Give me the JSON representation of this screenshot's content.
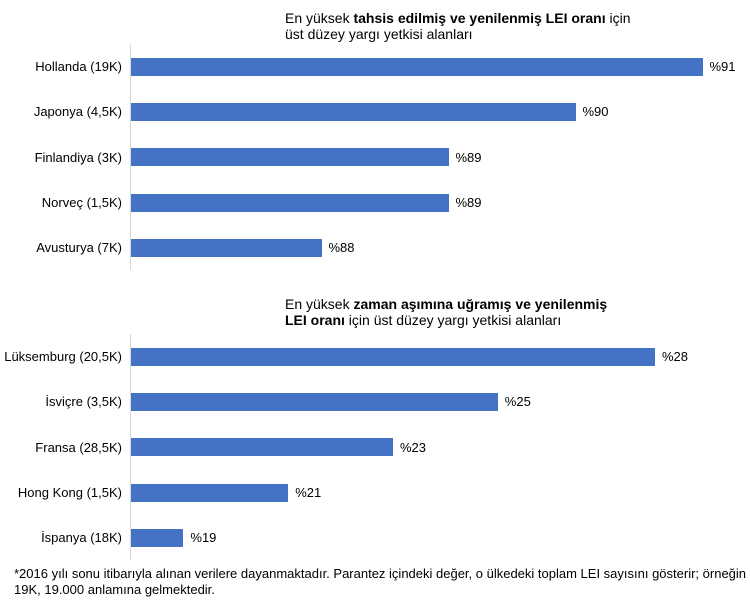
{
  "page": {
    "background": "#ffffff"
  },
  "colors": {
    "bar": "#4472C4",
    "axis_line": "#D9D9D9",
    "text": "#000000"
  },
  "footnote": {
    "lines": [
      "*2016 yılı sonu itibarıyla alınan verilere dayanmaktadır. Parantez içindeki değer, o ülkedeki toplam LEI sayısını gösterir; örneğin",
      "19K, 19.000 anlamına gelmektedir."
    ]
  },
  "chart_data": [
    {
      "type": "bar",
      "orientation": "horizontal",
      "title_lines": [
        [
          {
            "text": "En yüksek ",
            "bold": false
          },
          {
            "text": "tahsis edilmiş ve yenilenmiş LEI oranı",
            "bold": true
          },
          {
            "text": " için",
            "bold": false
          }
        ],
        [
          {
            "text": "üst düzey yargı yetkisi alanları",
            "bold": false
          }
        ]
      ],
      "categories": [
        "Hollanda (19K)",
        "Japonya (4,5K)",
        "Finlandiya (3K)",
        "Norveç (1,5K)",
        "Avusturya (7K)"
      ],
      "values": [
        91,
        90,
        89,
        89,
        88
      ],
      "value_labels": [
        "%91",
        "%90",
        "%89",
        "%89",
        "%88"
      ],
      "unit": "percent",
      "xlim": [
        86.5,
        91.6
      ],
      "bar_color": "#4472C4",
      "grid": false,
      "legend": false
    },
    {
      "type": "bar",
      "orientation": "horizontal",
      "title_lines": [
        [
          {
            "text": "En yüksek ",
            "bold": false
          },
          {
            "text": "zaman aşımına uğramış ve yenilenmiş",
            "bold": true
          }
        ],
        [
          {
            "text": "LEI oranı",
            "bold": true
          },
          {
            "text": " için üst düzey yargı yetkisi alanları",
            "bold": false
          }
        ]
      ],
      "categories": [
        "Lüksemburg (20,5K)",
        "İsviçre (3,5K)",
        "Fransa (28,5K)",
        "Hong Kong (1,5K)",
        "İspanya (18K)"
      ],
      "values": [
        28,
        25,
        23,
        21,
        19
      ],
      "value_labels": [
        "%28",
        "%25",
        "%23",
        "%21",
        "%19"
      ],
      "unit": "percent",
      "xlim": [
        18,
        28.6
      ],
      "bar_color": "#4472C4",
      "grid": false,
      "legend": false
    }
  ]
}
